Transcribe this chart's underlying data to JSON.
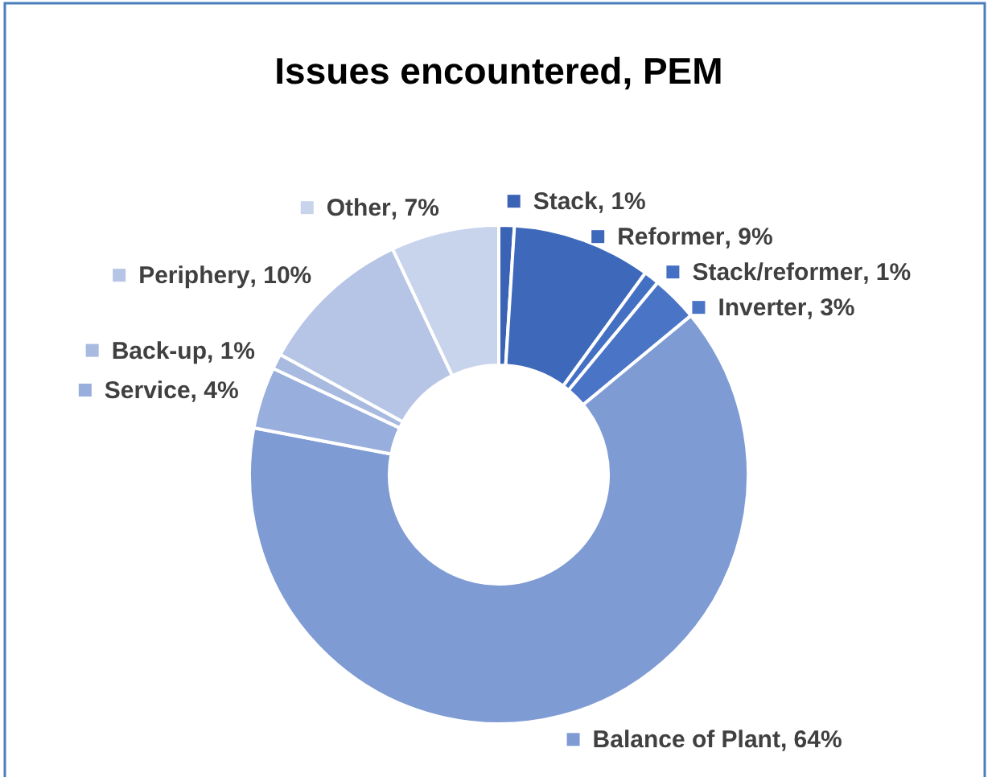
{
  "chart_data": {
    "type": "donut",
    "title": "Issues encountered, PEM",
    "categories": [
      "Stack",
      "Reformer",
      "Stack/reformer",
      "Inverter",
      "Balance of Plant",
      "Service",
      "Back-up",
      "Periphery",
      "Other"
    ],
    "values": [
      1,
      9,
      1,
      3,
      64,
      4,
      1,
      10,
      7
    ],
    "colors": [
      "#3a62b5",
      "#3e68ba",
      "#4470c4",
      "#4a74c6",
      "#7f9bd4",
      "#98aedc",
      "#a8badf",
      "#b6c5e6",
      "#c8d3ec"
    ],
    "value_labels": [
      ", 1%",
      ", 9%",
      ", 1%",
      ", 3%",
      ", 64%",
      ", 4%",
      ", 1%",
      ", 10%",
      ", 7%"
    ],
    "legend": "top left"
  }
}
